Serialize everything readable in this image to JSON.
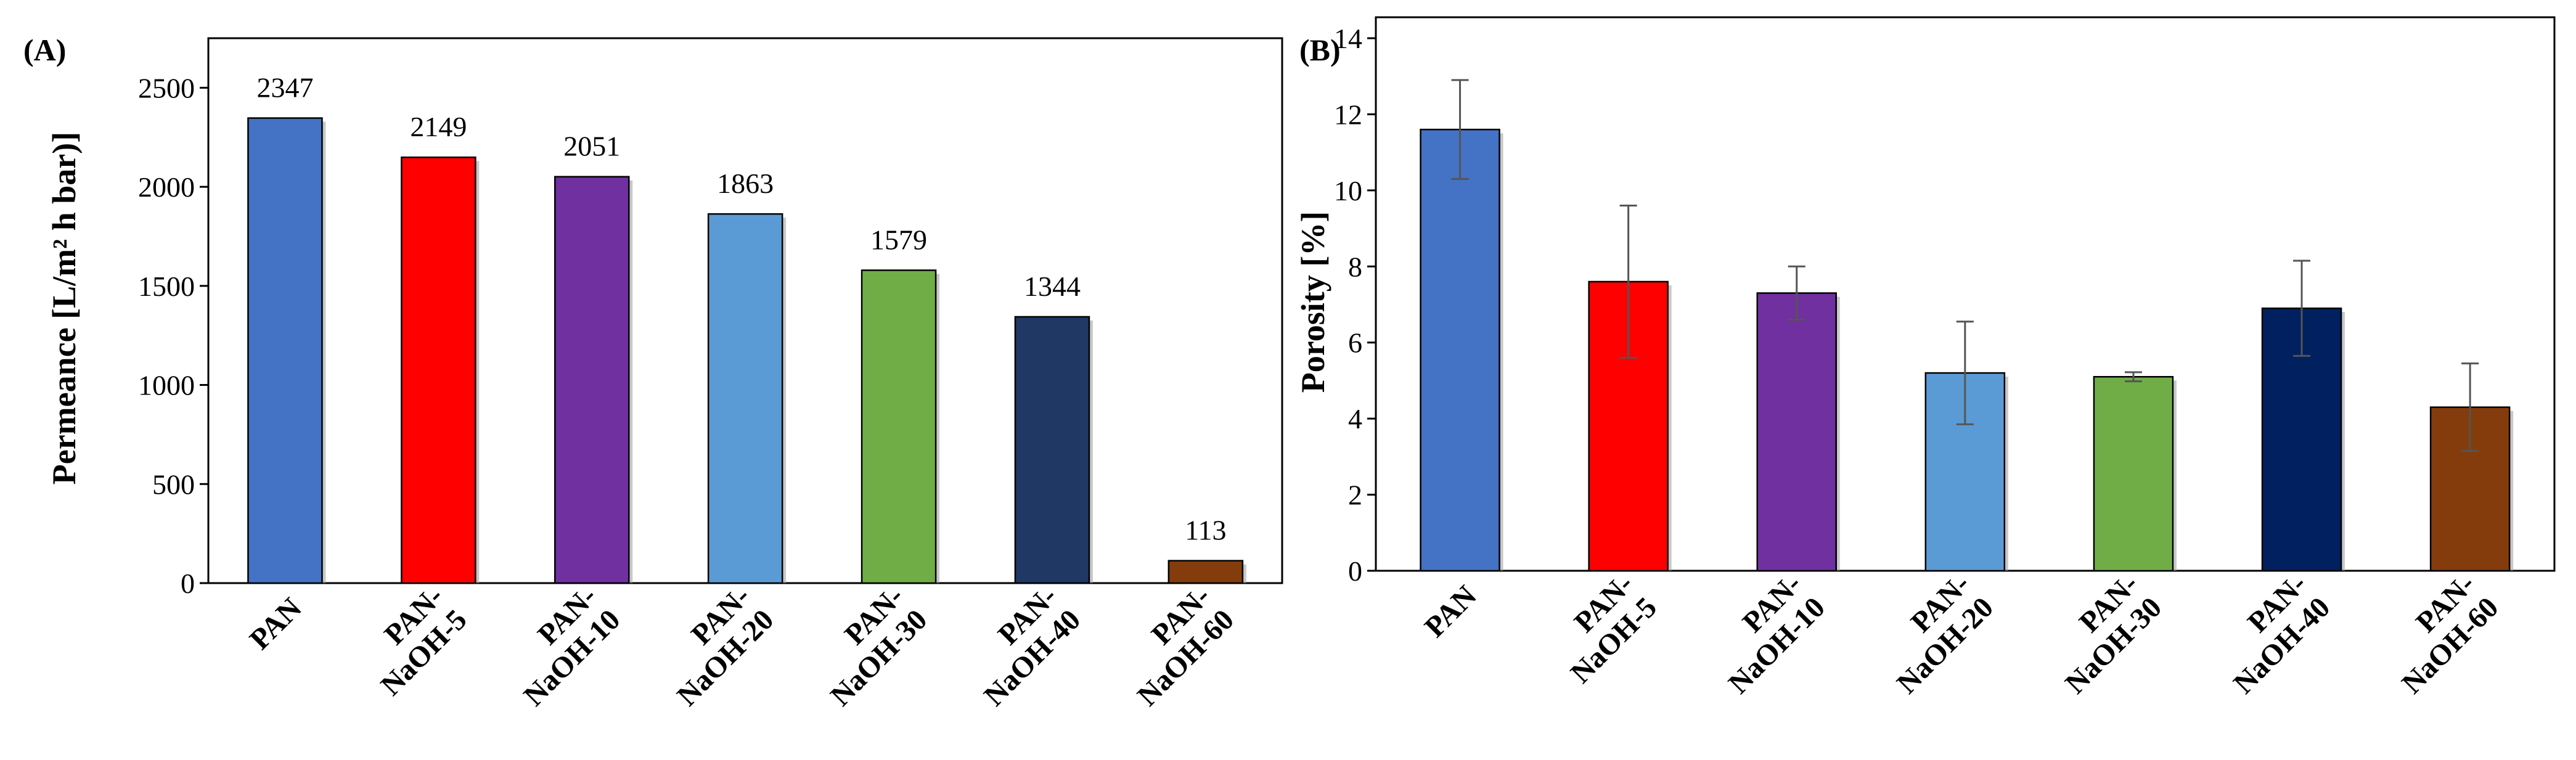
{
  "chart_data": [
    {
      "panel": "(A)",
      "type": "bar",
      "categories": [
        [
          "PAN"
        ],
        [
          "PAN-",
          "NaOH-5"
        ],
        [
          "PAN-",
          "NaOH-10"
        ],
        [
          "PAN-",
          "NaOH-20"
        ],
        [
          "PAN-",
          "NaOH-30"
        ],
        [
          "PAN-",
          "NaOH-40"
        ],
        [
          "PAN-",
          "NaOH-60"
        ]
      ],
      "values": [
        2347,
        2149,
        2051,
        1863,
        1579,
        1344,
        113
      ],
      "data_labels": [
        "2347",
        "2149",
        "2051",
        "1863",
        "1579",
        "1344",
        "113"
      ],
      "colors": [
        "#4472C4",
        "#FF0000",
        "#7030A0",
        "#5B9BD5",
        "#70AD47",
        "#203864",
        "#843C0C"
      ],
      "ylabel": "Permeance [L/m² h bar)]",
      "xlabel": "",
      "ylim": [
        0,
        2750
      ],
      "yticks": [
        0,
        500,
        1000,
        1500,
        2000,
        2500
      ],
      "grid": false
    },
    {
      "panel": "(B)",
      "type": "bar",
      "categories": [
        [
          "PAN"
        ],
        [
          "PAN-",
          "NaOH-5"
        ],
        [
          "PAN-",
          "NaOH-10"
        ],
        [
          "PAN-",
          "NaOH-20"
        ],
        [
          "PAN-",
          "NaOH-30"
        ],
        [
          "PAN-",
          "NaOH-40"
        ],
        [
          "PAN-",
          "NaOH-60"
        ]
      ],
      "values": [
        11.6,
        7.6,
        7.3,
        5.2,
        5.1,
        6.9,
        4.3
      ],
      "errors": [
        1.3,
        2.0,
        0.7,
        1.35,
        0.12,
        1.25,
        1.15
      ],
      "colors": [
        "#4472C4",
        "#FF0000",
        "#7030A0",
        "#5B9BD5",
        "#70AD47",
        "#002060",
        "#843C0C"
      ],
      "ylabel": "Porosity [%]",
      "xlabel": "",
      "ylim": [
        0,
        14
      ],
      "yticks": [
        0,
        2,
        4,
        6,
        8,
        10,
        12,
        14
      ],
      "grid": false
    }
  ]
}
